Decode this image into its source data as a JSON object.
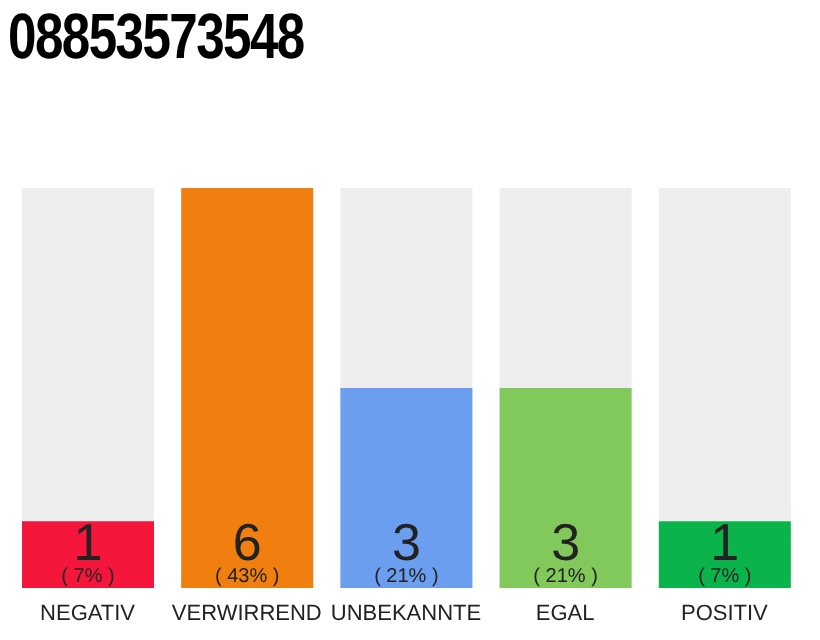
{
  "chart_data": {
    "type": "bar",
    "title": "08853573548",
    "categories": [
      "NEGATIV",
      "VERWIRREND",
      "UNBEKANNTE",
      "EGAL",
      "POSITIV"
    ],
    "values": [
      1,
      6,
      3,
      3,
      1
    ],
    "colors": [
      "#f5163b",
      "#f07f0f",
      "#6c9ef0",
      "#80c95a",
      "#0ab44a"
    ],
    "data_labels": true,
    "tick_labels": "x",
    "grid": false,
    "legend": false,
    "annotations": [
      "( 7% )",
      "( 43% )",
      "( 21% )",
      "( 21% )",
      "( 7% )"
    ]
  }
}
